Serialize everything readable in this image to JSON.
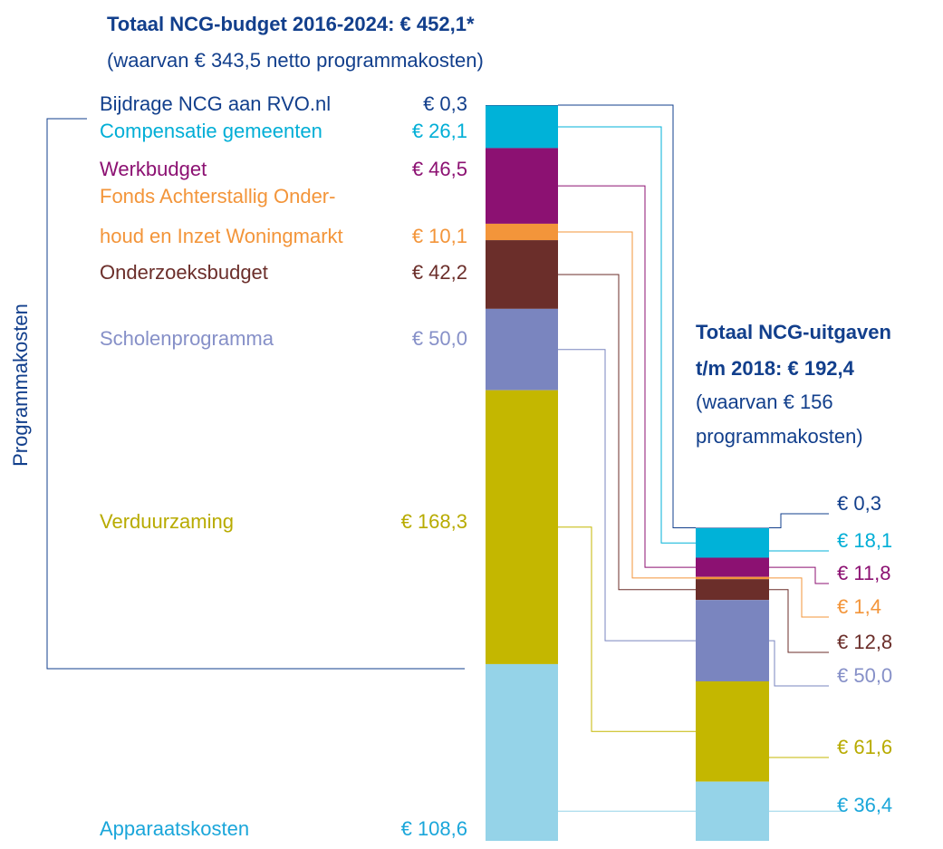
{
  "chart_data": {
    "type": "stacked_bar_compare",
    "side_label": "Programmakosten",
    "categories": [
      "Bijdrage NCG aan RVO.nl",
      "Compensatie gemeenten",
      "Werkbudget",
      "Fonds Achterstallig Onder-\nhoud en Inzet Woningmarkt",
      "Onderzoeksbudget",
      "Scholenprogramma",
      "Verduurzaming",
      "Apparaatskosten"
    ],
    "colors": [
      "#123f8c",
      "#00b2d8",
      "#8c1172",
      "#f3953a",
      "#6b2e2a",
      "#7a85bf",
      "#c4b700",
      "#95d3e8"
    ],
    "label_colors": [
      "#123f8c",
      "#00aed6",
      "#8c1172",
      "#f3953a",
      "#6b2e2a",
      "#8690c8",
      "#b8ab00",
      "#1aa6da"
    ],
    "series": [
      {
        "name": "Totaal NCG-budget 2016-2024: € 452,1*",
        "subtitle": "(waarvan € 343,5 netto programmakosten)",
        "values": [
          0.3,
          26.1,
          46.5,
          10.1,
          42.2,
          50.0,
          168.3,
          108.6
        ],
        "value_labels": [
          "€ 0,3",
          "€ 26,1",
          "€ 46,5",
          "€ 10,1",
          "€ 42,2",
          "€ 50,0",
          "€ 168,3",
          "€ 108,6"
        ]
      },
      {
        "name": "Totaal NCG-uitgaven\nt/m 2018: € 192,4",
        "subtitle": "(waarvan € 156\nprogrammakosten)",
        "values": [
          0.3,
          18.1,
          11.8,
          1.4,
          12.8,
          50.0,
          61.6,
          36.4
        ],
        "value_labels": [
          "€ 0,3",
          "€ 18,1",
          "€ 11,8",
          "€ 1,4",
          "€ 12,8",
          "€ 50,0",
          "€ 61,6",
          "€ 36,4"
        ]
      }
    ]
  }
}
